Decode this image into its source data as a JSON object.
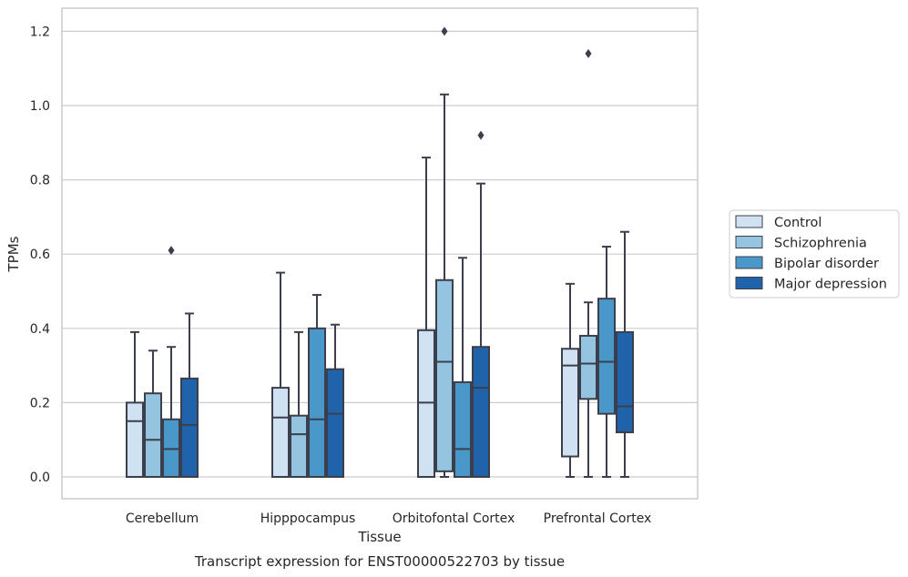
{
  "chart_data": {
    "type": "box",
    "title": "Transcript expression for ENST00000522703 by tissue",
    "xlabel": "Tissue",
    "ylabel": "TPMs",
    "ylim": [
      -0.06,
      1.26
    ],
    "yticks": [
      0.0,
      0.2,
      0.4,
      0.6,
      0.8,
      1.0,
      1.2
    ],
    "ytick_labels": [
      "0.0",
      "0.2",
      "0.4",
      "0.6",
      "0.8",
      "1.0",
      "1.2"
    ],
    "grid": "horizontal",
    "legend_position": "right",
    "categories": [
      "Cerebellum",
      "Hipppocampus",
      "Orbitofontal Cortex",
      "Prefrontal Cortex"
    ],
    "series": [
      {
        "name": "Control",
        "color": "#d0e1f2",
        "boxes": [
          {
            "min": 0.0,
            "q1": 0.0,
            "median": 0.15,
            "q3": 0.2,
            "max": 0.39,
            "outliers": []
          },
          {
            "min": 0.0,
            "q1": 0.0,
            "median": 0.16,
            "q3": 0.24,
            "max": 0.55,
            "outliers": []
          },
          {
            "min": 0.0,
            "q1": 0.0,
            "median": 0.2,
            "q3": 0.395,
            "max": 0.86,
            "outliers": []
          },
          {
            "min": 0.0,
            "q1": 0.055,
            "median": 0.3,
            "q3": 0.345,
            "max": 0.52,
            "outliers": []
          }
        ]
      },
      {
        "name": "Schizophrenia",
        "color": "#94c4df",
        "boxes": [
          {
            "min": 0.0,
            "q1": 0.0,
            "median": 0.1,
            "q3": 0.225,
            "max": 0.34,
            "outliers": []
          },
          {
            "min": 0.0,
            "q1": 0.0,
            "median": 0.115,
            "q3": 0.165,
            "max": 0.39,
            "outliers": []
          },
          {
            "min": 0.0,
            "q1": 0.015,
            "median": 0.31,
            "q3": 0.53,
            "max": 1.03,
            "outliers": [
              1.2
            ]
          },
          {
            "min": 0.0,
            "q1": 0.21,
            "median": 0.305,
            "q3": 0.38,
            "max": 0.47,
            "outliers": [
              1.14
            ]
          }
        ]
      },
      {
        "name": "Bipolar disorder",
        "color": "#4a98c9",
        "boxes": [
          {
            "min": 0.0,
            "q1": 0.0,
            "median": 0.075,
            "q3": 0.155,
            "max": 0.35,
            "outliers": [
              0.61
            ]
          },
          {
            "min": 0.0,
            "q1": 0.0,
            "median": 0.155,
            "q3": 0.4,
            "max": 0.49,
            "outliers": []
          },
          {
            "min": 0.0,
            "q1": 0.0,
            "median": 0.075,
            "q3": 0.255,
            "max": 0.59,
            "outliers": []
          },
          {
            "min": 0.0,
            "q1": 0.17,
            "median": 0.31,
            "q3": 0.48,
            "max": 0.62,
            "outliers": []
          }
        ]
      },
      {
        "name": "Major depression",
        "color": "#2163aa",
        "boxes": [
          {
            "min": 0.0,
            "q1": 0.0,
            "median": 0.14,
            "q3": 0.265,
            "max": 0.44,
            "outliers": []
          },
          {
            "min": 0.0,
            "q1": 0.0,
            "median": 0.17,
            "q3": 0.29,
            "max": 0.41,
            "outliers": []
          },
          {
            "min": 0.0,
            "q1": 0.0,
            "median": 0.24,
            "q3": 0.35,
            "max": 0.79,
            "outliers": [
              0.92
            ]
          },
          {
            "min": 0.0,
            "q1": 0.12,
            "median": 0.19,
            "q3": 0.39,
            "max": 0.66,
            "outliers": []
          }
        ]
      }
    ],
    "colors": {
      "edge": "#3a3f4b",
      "grid": "#cccccc",
      "frame": "#cccccc",
      "text": "#262626"
    }
  }
}
